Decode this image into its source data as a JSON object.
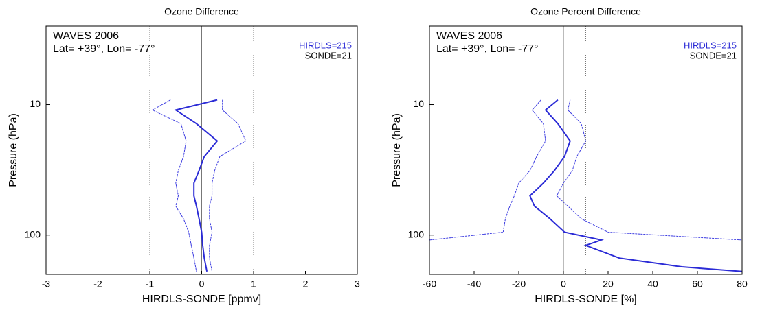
{
  "chart_data": [
    {
      "type": "line",
      "title": "Ozone Difference",
      "xlabel": "HIRDLS-SONDE  [ppmv]",
      "ylabel": "Pressure (hPa)",
      "annotations": [
        {
          "text": "WAVES 2006",
          "color": "#000000"
        },
        {
          "text": "Lat= +39°, Lon= -77°",
          "color": "#000000"
        },
        {
          "text": "HIRDLS=215",
          "color": "#2b2bd6"
        },
        {
          "text": "SONDE=21",
          "color": "#000000"
        }
      ],
      "xlim": [
        -3,
        3
      ],
      "xticks": [
        -3,
        -2,
        -1,
        0,
        1,
        2,
        3
      ],
      "ylim": [
        200,
        2.5
      ],
      "yticks": [
        10,
        100
      ],
      "ylog": true,
      "ref_lines": [
        -1,
        0,
        1
      ],
      "pressure": [
        9.2,
        11,
        14,
        19,
        25,
        32,
        40,
        50,
        60,
        75,
        95,
        120,
        150,
        190
      ],
      "series": [
        {
          "color": "#2b2bd6",
          "values": [
            0.3,
            -0.5,
            -0.1,
            0.3,
            0.05,
            -0.05,
            -0.15,
            -0.15,
            -0.1,
            -0.05,
            0.0,
            0.02,
            0.05,
            0.1
          ]
        },
        {
          "color": "#3a3ae0",
          "values": [
            0.4,
            0.4,
            0.7,
            0.85,
            0.35,
            0.25,
            0.2,
            0.2,
            0.15,
            0.15,
            0.2,
            0.15,
            0.15,
            0.2
          ]
        },
        {
          "color": "#3a3ae0",
          "values": [
            -0.6,
            -0.95,
            -0.4,
            -0.3,
            -0.35,
            -0.45,
            -0.5,
            -0.45,
            -0.5,
            -0.35,
            -0.25,
            -0.2,
            -0.15,
            -0.1
          ]
        }
      ]
    },
    {
      "type": "line",
      "title": "Ozone Percent Difference",
      "xlabel": "HIRDLS-SONDE  [%]",
      "ylabel": "Pressure (hPa)",
      "annotations": [
        {
          "text": "WAVES 2006",
          "color": "#000000"
        },
        {
          "text": "Lat= +39°, Lon= -77°",
          "color": "#000000"
        },
        {
          "text": "HIRDLS=215",
          "color": "#2b2bd6"
        },
        {
          "text": "SONDE=21",
          "color": "#000000"
        }
      ],
      "xlim": [
        -60,
        80
      ],
      "xticks": [
        -60,
        -40,
        -20,
        0,
        20,
        40,
        60,
        80
      ],
      "ylim": [
        200,
        2.5
      ],
      "yticks": [
        10,
        100
      ],
      "ylog": true,
      "ref_lines": [
        -10,
        0,
        10
      ],
      "pressure": [
        9.2,
        11,
        14,
        19,
        25,
        32,
        40,
        50,
        60,
        75,
        95,
        109,
        120,
        150,
        175,
        190
      ],
      "series": [
        {
          "color": "#2b2bd6",
          "values": [
            -2.5,
            -8,
            -2.5,
            3,
            0.5,
            -4,
            -9,
            -15,
            -13,
            -6,
            0.5,
            17,
            10,
            25,
            53,
            80
          ]
        },
        {
          "color": "#3a3ae0",
          "values": [
            3,
            2,
            8,
            10,
            6,
            4,
            0,
            -3,
            2,
            8,
            20,
            80,
            null,
            null,
            null,
            null
          ]
        },
        {
          "color": "#3a3ae0",
          "values": [
            -10,
            -14,
            -9,
            -8,
            -12,
            -15,
            -20,
            -22,
            -24,
            -26,
            -27,
            -60,
            null,
            null,
            null,
            null
          ]
        }
      ]
    }
  ]
}
